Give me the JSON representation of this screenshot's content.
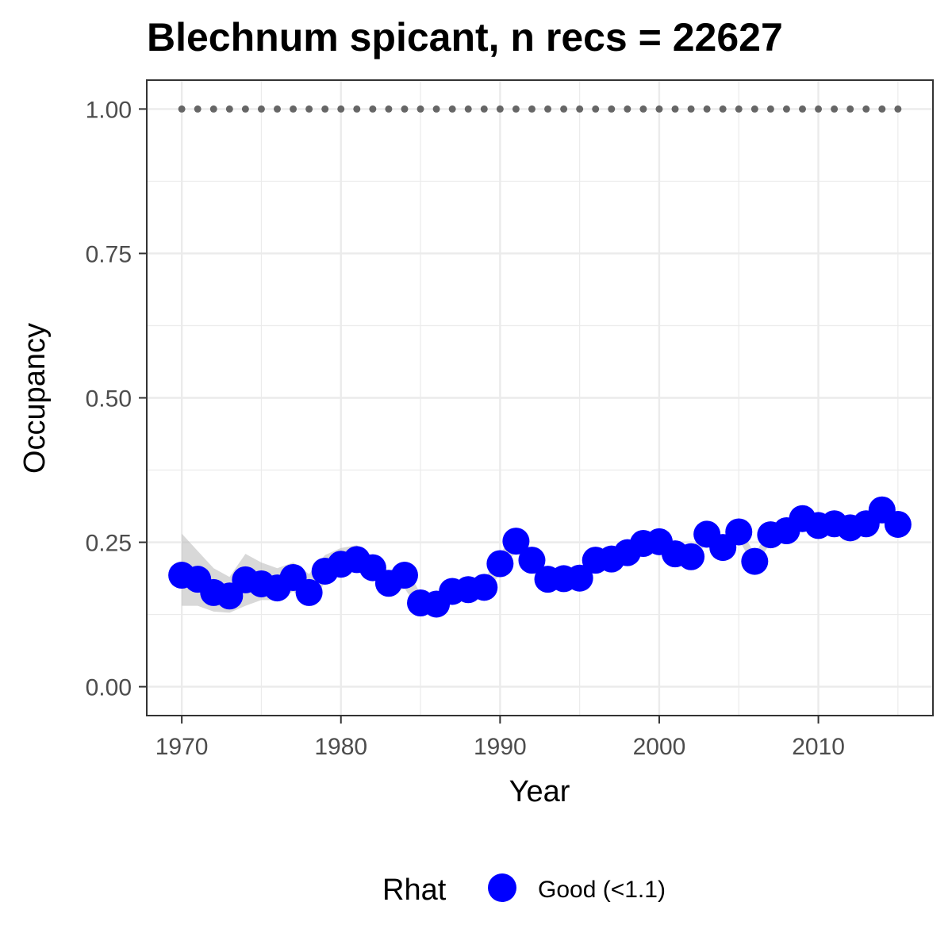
{
  "chart_data": {
    "type": "line",
    "title": "Blechnum spicant, n recs = 22627",
    "xlabel": "Year",
    "ylabel": "Occupancy",
    "xlim": [
      1967.8,
      2017.2
    ],
    "ylim": [
      -0.05,
      1.05
    ],
    "x_ticks": [
      1970,
      1980,
      1990,
      2000,
      2010
    ],
    "x_tick_labels": [
      "1970",
      "1980",
      "1990",
      "2000",
      "2010"
    ],
    "y_ticks": [
      0,
      0.25,
      0.5,
      0.75,
      1.0
    ],
    "y_tick_labels": [
      "0.00",
      "0.25",
      "0.50",
      "0.75",
      "1.00"
    ],
    "grid": true,
    "legend_position": "bottom",
    "legend_title": "Rhat",
    "colors": {
      "points": "#0000ff",
      "ribbon": "#bebebe",
      "reference": "#666666"
    },
    "series": [
      {
        "name": "Good (<1.1)",
        "x": [
          1970,
          1971,
          1972,
          1973,
          1974,
          1975,
          1976,
          1977,
          1978,
          1979,
          1980,
          1981,
          1982,
          1983,
          1984,
          1985,
          1986,
          1987,
          1988,
          1989,
          1990,
          1991,
          1992,
          1993,
          1994,
          1995,
          1996,
          1997,
          1998,
          1999,
          2000,
          2001,
          2002,
          2003,
          2004,
          2005,
          2006,
          2007,
          2008,
          2009,
          2010,
          2011,
          2012,
          2013,
          2014,
          2015
        ],
        "y": [
          0.193,
          0.186,
          0.163,
          0.157,
          0.185,
          0.178,
          0.171,
          0.189,
          0.163,
          0.2,
          0.212,
          0.22,
          0.206,
          0.179,
          0.193,
          0.145,
          0.143,
          0.165,
          0.168,
          0.172,
          0.213,
          0.252,
          0.219,
          0.186,
          0.187,
          0.188,
          0.219,
          0.221,
          0.232,
          0.248,
          0.251,
          0.23,
          0.225,
          0.264,
          0.241,
          0.268,
          0.217,
          0.263,
          0.27,
          0.291,
          0.279,
          0.282,
          0.275,
          0.282,
          0.306,
          0.281
        ],
        "lower": [
          0.14,
          0.14,
          0.13,
          0.128,
          0.14,
          0.15,
          0.15,
          0.165,
          0.14,
          0.18,
          0.195,
          0.2,
          0.188,
          0.16,
          0.17,
          0.13,
          0.13,
          0.15,
          0.155,
          0.16,
          0.195,
          0.235,
          0.2,
          0.17,
          0.172,
          0.175,
          0.205,
          0.208,
          0.218,
          0.235,
          0.238,
          0.218,
          0.212,
          0.25,
          0.228,
          0.255,
          0.205,
          0.25,
          0.258,
          0.278,
          0.268,
          0.27,
          0.264,
          0.27,
          0.294,
          0.27
        ],
        "upper": [
          0.265,
          0.235,
          0.205,
          0.19,
          0.23,
          0.215,
          0.205,
          0.215,
          0.195,
          0.228,
          0.24,
          0.245,
          0.226,
          0.2,
          0.215,
          0.16,
          0.156,
          0.18,
          0.181,
          0.185,
          0.23,
          0.268,
          0.237,
          0.2,
          0.201,
          0.201,
          0.232,
          0.234,
          0.245,
          0.261,
          0.264,
          0.242,
          0.238,
          0.278,
          0.254,
          0.281,
          0.229,
          0.276,
          0.282,
          0.303,
          0.29,
          0.294,
          0.286,
          0.294,
          0.318,
          0.292
        ]
      },
      {
        "x": [
          1970,
          1971,
          1972,
          1973,
          1974,
          1975,
          1976,
          1977,
          1978,
          1979,
          1980,
          1981,
          1982,
          1983,
          1984,
          1985,
          1986,
          1987,
          1988,
          1989,
          1990,
          1991,
          1992,
          1993,
          1994,
          1995,
          1996,
          1997,
          1998,
          1999,
          2000,
          2001,
          2002,
          2003,
          2004,
          2005,
          2006,
          2007,
          2008,
          2009,
          2010,
          2011,
          2012,
          2013,
          2014,
          2015
        ],
        "y": [
          1,
          1,
          1,
          1,
          1,
          1,
          1,
          1,
          1,
          1,
          1,
          1,
          1,
          1,
          1,
          1,
          1,
          1,
          1,
          1,
          1,
          1,
          1,
          1,
          1,
          1,
          1,
          1,
          1,
          1,
          1,
          1,
          1,
          1,
          1,
          1,
          1,
          1,
          1,
          1,
          1,
          1,
          1,
          1,
          1,
          1
        ]
      }
    ]
  }
}
